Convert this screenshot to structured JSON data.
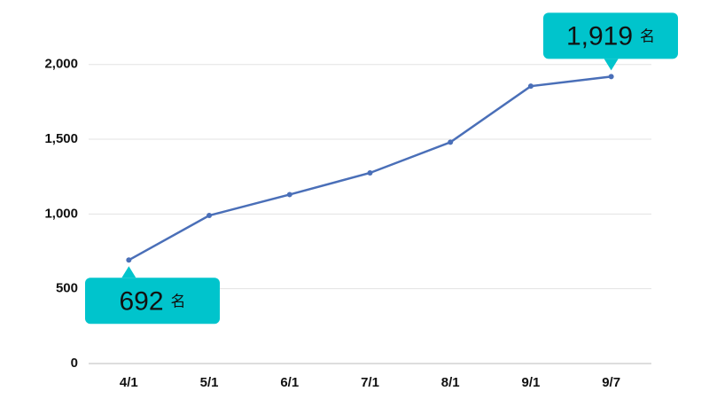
{
  "chart_data": {
    "type": "line",
    "categories": [
      "4/1",
      "5/1",
      "6/1",
      "7/1",
      "8/1",
      "9/1",
      "9/7"
    ],
    "values": [
      692,
      990,
      1130,
      1275,
      1480,
      1855,
      1919
    ],
    "value_labels": [
      "692",
      null,
      null,
      null,
      null,
      null,
      "1,919"
    ],
    "unit_label": "名",
    "color": "#4a6fb8",
    "callout_color": "#00c4cc",
    "ylim": [
      0,
      2200
    ],
    "yticks": [
      0,
      500,
      {
        "value": 1000,
        "label": "1,000"
      },
      {
        "value": 1500,
        "label": "1,500"
      },
      {
        "value": 2000,
        "label": "2,000"
      }
    ],
    "grid": true
  }
}
